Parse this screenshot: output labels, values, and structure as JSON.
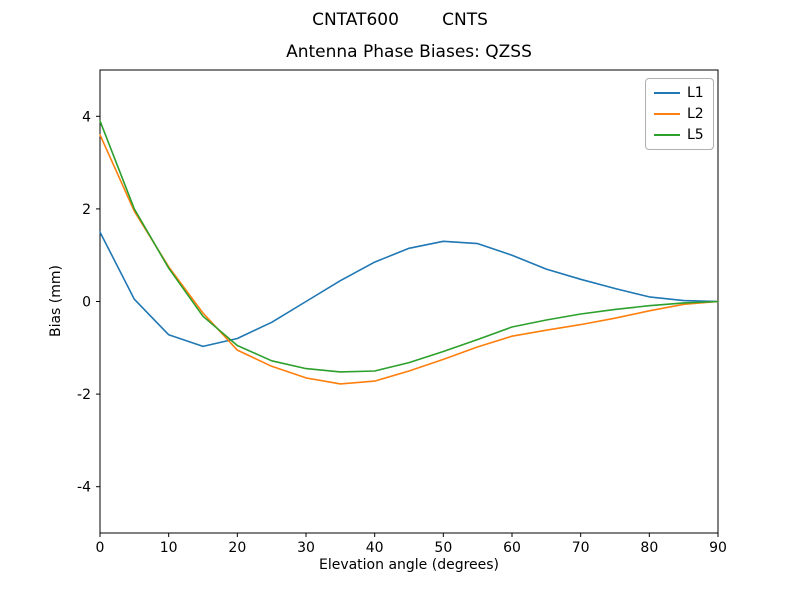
{
  "suptitle": "CNTAT600        CNTS",
  "chart_data": {
    "type": "line",
    "title": "Antenna Phase Biases: QZSS",
    "xlabel": "Elevation angle (degrees)",
    "ylabel": "Bias (mm)",
    "xlim": [
      0,
      90
    ],
    "ylim": [
      -5,
      5
    ],
    "xticks": [
      0,
      10,
      20,
      30,
      40,
      50,
      60,
      70,
      80,
      90
    ],
    "yticks": [
      -4,
      -2,
      0,
      2,
      4
    ],
    "grid": false,
    "legend_position": "upper right",
    "x": [
      0,
      5,
      10,
      15,
      20,
      25,
      30,
      35,
      40,
      45,
      50,
      55,
      60,
      65,
      70,
      75,
      80,
      85,
      90
    ],
    "series": [
      {
        "name": "L1",
        "color": "#1f77b4",
        "values": [
          1.5,
          0.05,
          -0.72,
          -0.97,
          -0.8,
          -0.45,
          0.0,
          0.45,
          0.85,
          1.15,
          1.3,
          1.25,
          1.0,
          0.7,
          0.48,
          0.28,
          0.1,
          0.02,
          0.0
        ]
      },
      {
        "name": "L2",
        "color": "#ff7f0e",
        "values": [
          3.6,
          1.95,
          0.75,
          -0.25,
          -1.05,
          -1.4,
          -1.65,
          -1.78,
          -1.72,
          -1.5,
          -1.25,
          -0.98,
          -0.75,
          -0.62,
          -0.5,
          -0.36,
          -0.2,
          -0.06,
          0.0
        ]
      },
      {
        "name": "L5",
        "color": "#2ca02c",
        "values": [
          3.9,
          2.0,
          0.72,
          -0.32,
          -0.95,
          -1.28,
          -1.45,
          -1.52,
          -1.5,
          -1.32,
          -1.08,
          -0.82,
          -0.55,
          -0.4,
          -0.27,
          -0.17,
          -0.09,
          -0.03,
          0.0
        ]
      }
    ]
  }
}
